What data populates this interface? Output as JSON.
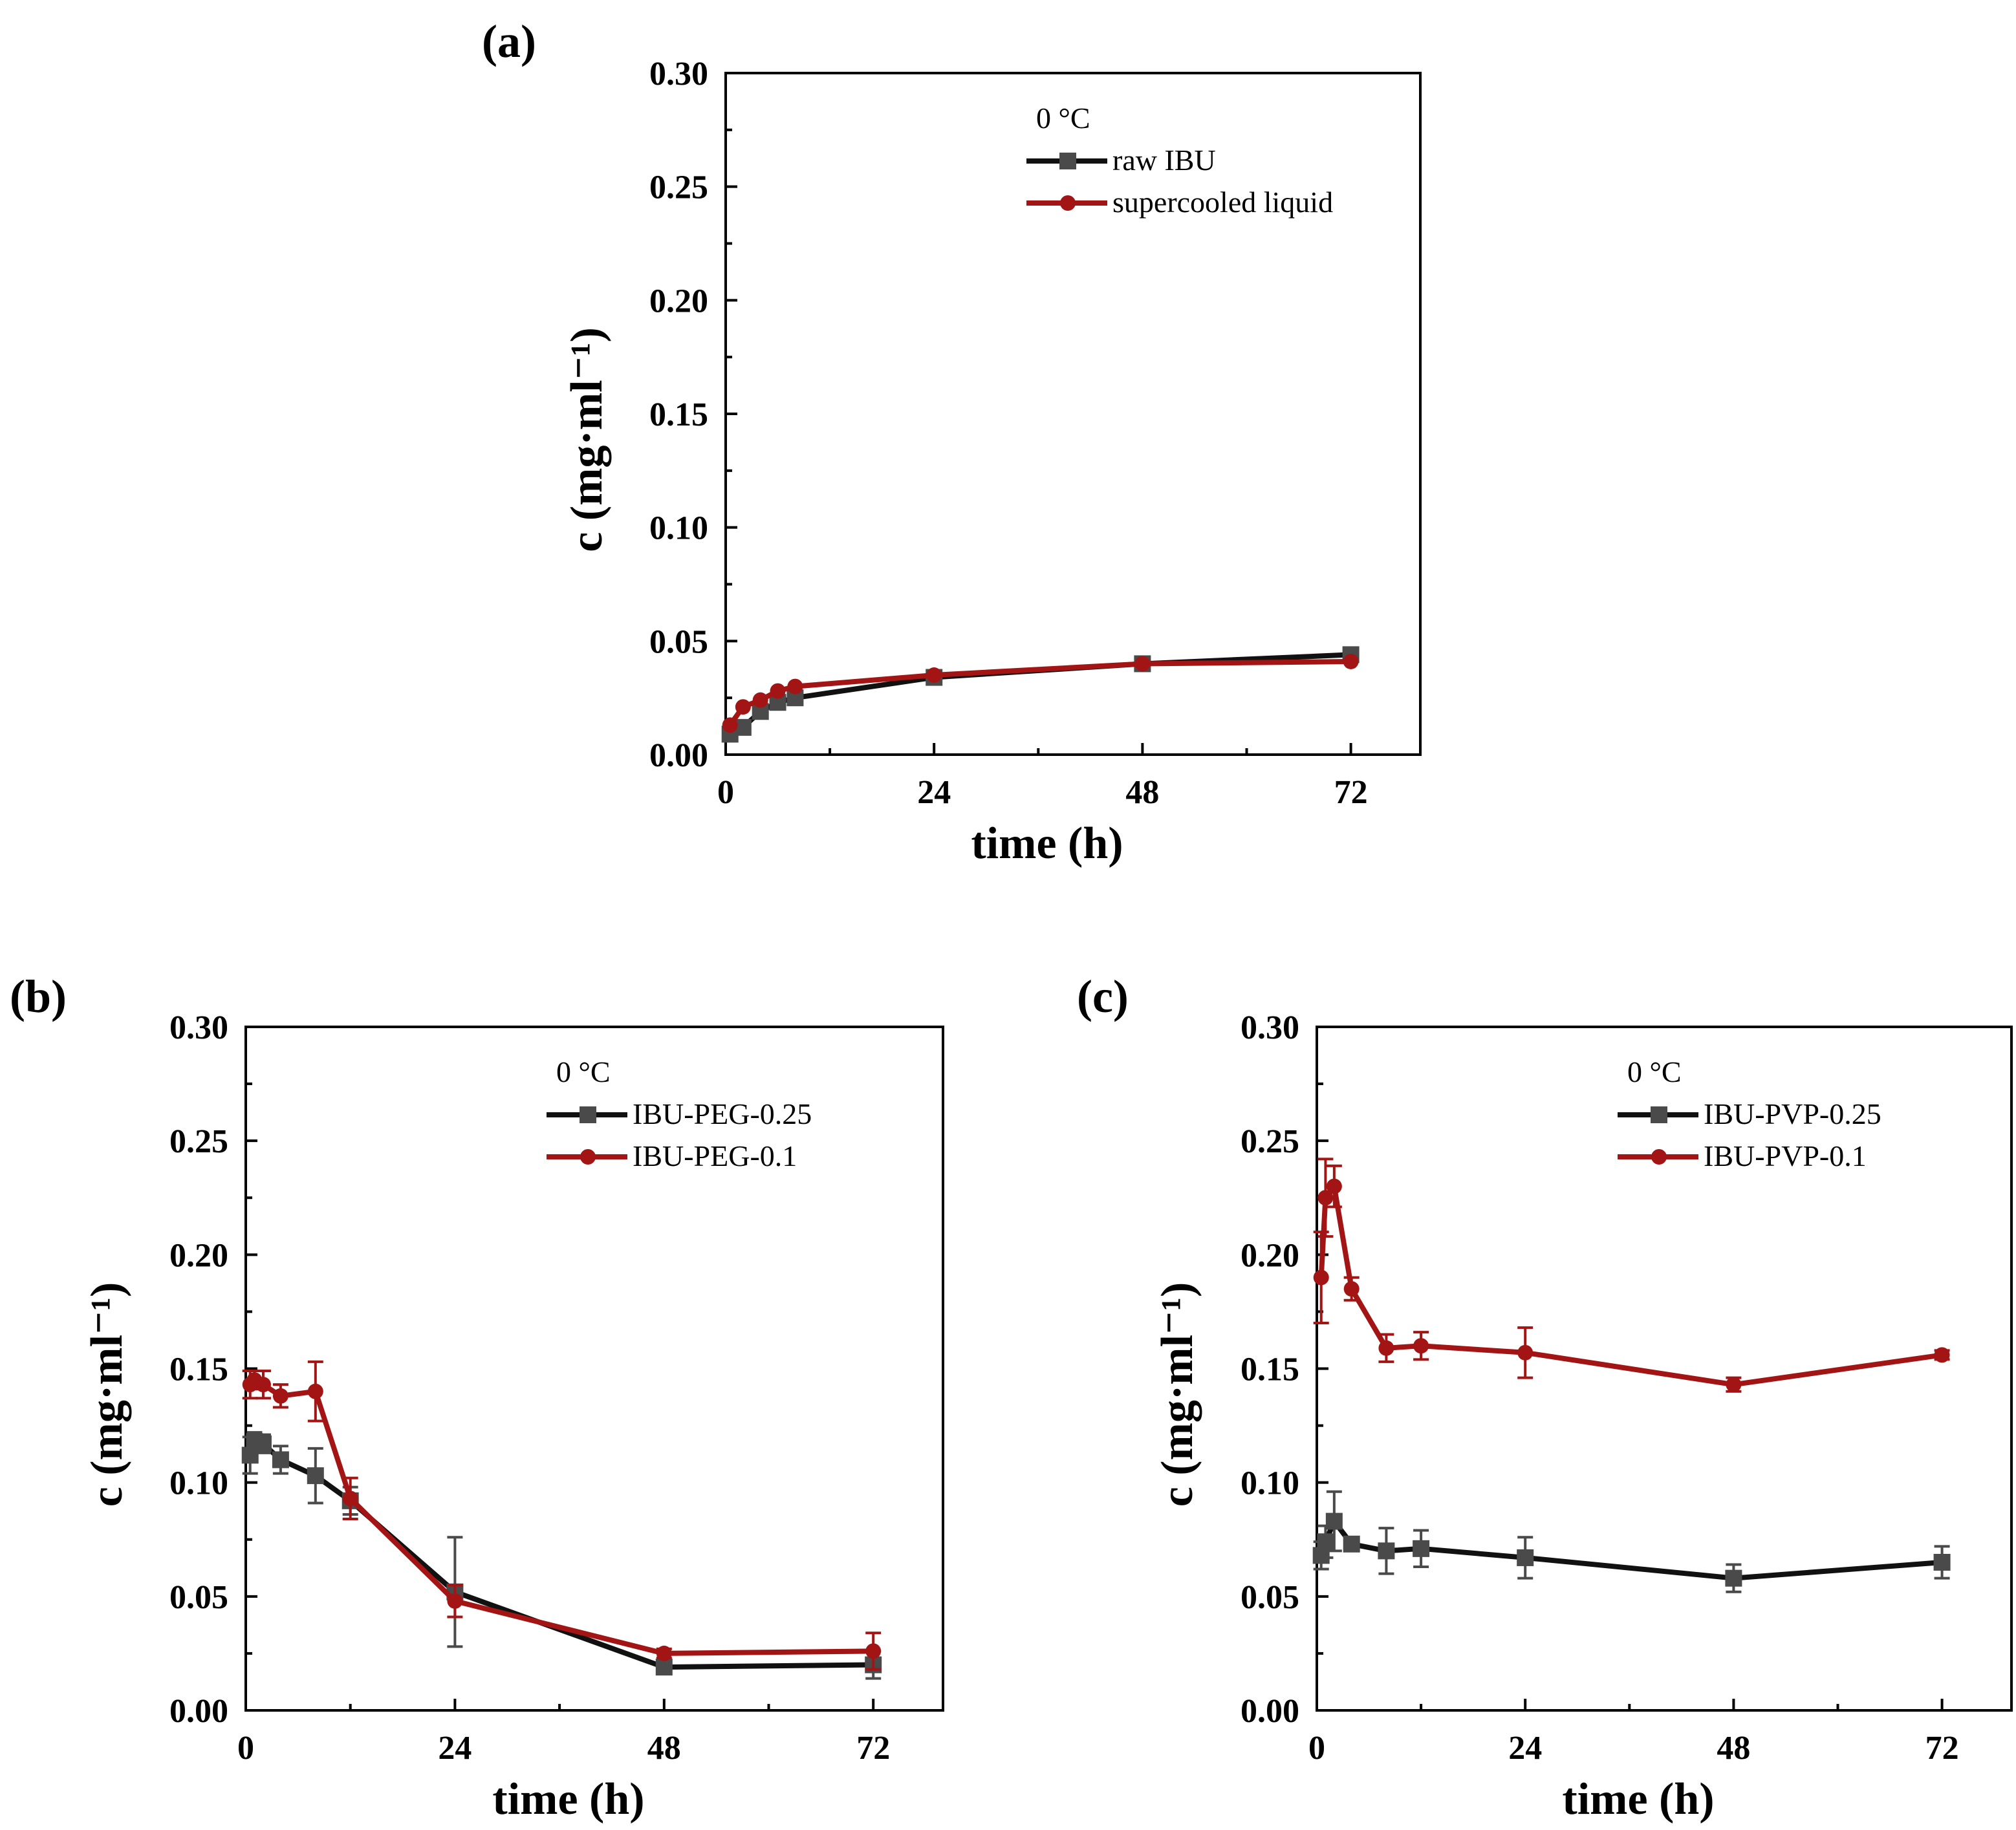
{
  "colors": {
    "series_black": "#111111",
    "marker_black": "#4a4a4a",
    "series_red": "#a31515"
  },
  "chart_data": [
    {
      "type": "line",
      "panel_label": "(a)",
      "title": "",
      "xlabel": "time (h)",
      "ylabel": "c (mg·ml⁻¹)",
      "xlim": [
        0,
        80
      ],
      "ylim": [
        0,
        0.3
      ],
      "xticks": [
        0,
        24,
        48,
        72
      ],
      "yticks": [
        0,
        0.05,
        0.1,
        0.15,
        0.2,
        0.25,
        0.3
      ],
      "ytick_labels": [
        "0.00",
        "0.05",
        "0.10",
        "0.15",
        "0.20",
        "0.25",
        "0.30"
      ],
      "legend_title": "0 °C",
      "legend_position": "top-right",
      "series": [
        {
          "name": "raw IBU",
          "color": "#111111",
          "marker": "square",
          "x": [
            0.5,
            2,
            4,
            6,
            8,
            24,
            48,
            72
          ],
          "y": [
            0.009,
            0.012,
            0.019,
            0.023,
            0.025,
            0.034,
            0.04,
            0.044
          ],
          "err": [
            0,
            0,
            0,
            0,
            0,
            0,
            0,
            0
          ]
        },
        {
          "name": "supercooled liquid",
          "color": "#a31515",
          "marker": "circle",
          "x": [
            0.5,
            2,
            4,
            6,
            8,
            24,
            48,
            72
          ],
          "y": [
            0.013,
            0.021,
            0.024,
            0.028,
            0.03,
            0.035,
            0.04,
            0.041
          ],
          "err": [
            0,
            0,
            0,
            0,
            0,
            0,
            0,
            0
          ]
        }
      ]
    },
    {
      "type": "line",
      "panel_label": "(b)",
      "title": "",
      "xlabel": "time (h)",
      "ylabel": "c (mg·ml⁻¹)",
      "xlim": [
        0,
        80
      ],
      "ylim": [
        0,
        0.3
      ],
      "xticks": [
        0,
        24,
        48,
        72
      ],
      "yticks": [
        0,
        0.05,
        0.1,
        0.15,
        0.2,
        0.25,
        0.3
      ],
      "ytick_labels": [
        "0.00",
        "0.05",
        "0.10",
        "0.15",
        "0.20",
        "0.25",
        "0.30"
      ],
      "legend_title": "0 °C",
      "legend_position": "top-right",
      "series": [
        {
          "name": "IBU-PEG-0.25",
          "color": "#111111",
          "marker": "square",
          "x": [
            0.5,
            1,
            2,
            4,
            8,
            12,
            24,
            48,
            72
          ],
          "y": [
            0.112,
            0.118,
            0.117,
            0.11,
            0.103,
            0.092,
            0.052,
            0.019,
            0.02
          ],
          "err": [
            0.008,
            0.004,
            0.004,
            0.006,
            0.012,
            0.006,
            0.024,
            0.003,
            0.006
          ]
        },
        {
          "name": "IBU-PEG-0.1",
          "color": "#a31515",
          "marker": "circle",
          "x": [
            0.5,
            1,
            2,
            4,
            8,
            12,
            24,
            48,
            72
          ],
          "y": [
            0.143,
            0.145,
            0.143,
            0.138,
            0.14,
            0.093,
            0.048,
            0.025,
            0.026
          ],
          "err": [
            0.006,
            0.004,
            0.006,
            0.005,
            0.013,
            0.009,
            0.007,
            0.002,
            0.008
          ]
        }
      ]
    },
    {
      "type": "line",
      "panel_label": "(c)",
      "title": "",
      "xlabel": "time (h)",
      "ylabel": "c (mg·ml⁻¹)",
      "xlim": [
        0,
        80
      ],
      "ylim": [
        0,
        0.3
      ],
      "xticks": [
        0,
        24,
        48,
        72
      ],
      "yticks": [
        0,
        0.05,
        0.1,
        0.15,
        0.2,
        0.25,
        0.3
      ],
      "ytick_labels": [
        "0.00",
        "0.05",
        "0.10",
        "0.15",
        "0.20",
        "0.25",
        "0.30"
      ],
      "legend_title": "0 °C",
      "legend_position": "top-right",
      "series": [
        {
          "name": "IBU-PVP-0.25",
          "color": "#111111",
          "marker": "square",
          "x": [
            0.5,
            1,
            2,
            4,
            8,
            12,
            24,
            48,
            72
          ],
          "y": [
            0.068,
            0.074,
            0.083,
            0.073,
            0.07,
            0.071,
            0.067,
            0.058,
            0.065
          ],
          "err": [
            0.006,
            0.007,
            0.013,
            0.003,
            0.01,
            0.008,
            0.009,
            0.006,
            0.007
          ]
        },
        {
          "name": "IBU-PVP-0.1",
          "color": "#a31515",
          "marker": "circle",
          "x": [
            0.5,
            1,
            2,
            4,
            8,
            12,
            24,
            48,
            72
          ],
          "y": [
            0.19,
            0.225,
            0.23,
            0.185,
            0.159,
            0.16,
            0.157,
            0.143,
            0.156
          ],
          "err": [
            0.02,
            0.017,
            0.009,
            0.005,
            0.006,
            0.006,
            0.011,
            0.003,
            0.002
          ]
        }
      ]
    }
  ]
}
